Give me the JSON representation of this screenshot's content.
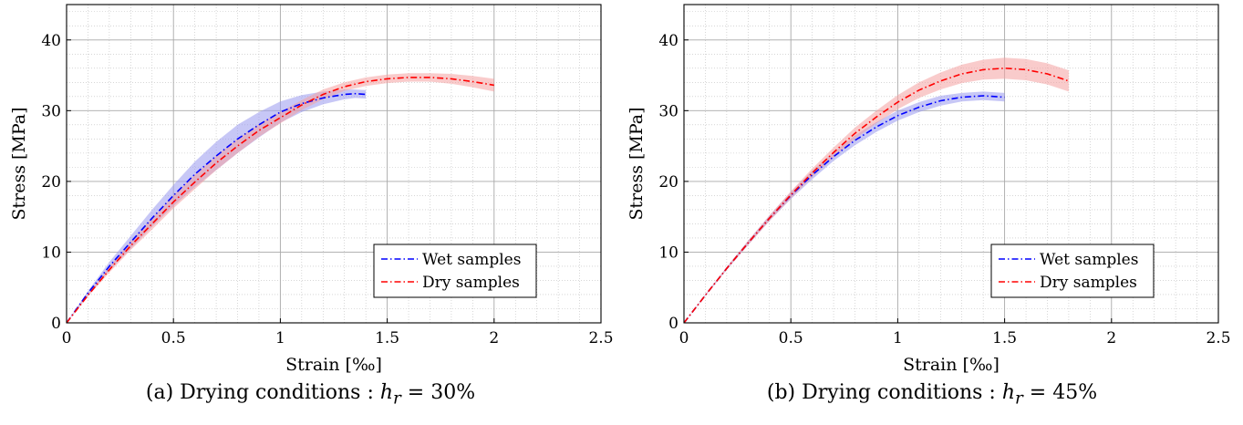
{
  "chart_data": [
    {
      "type": "line",
      "panel": "a",
      "caption_prefix": "(a) Drying conditions : ",
      "caption_var": "h",
      "caption_sub": "r",
      "caption_suffix": " = 30%",
      "xlabel": "Strain [‰]",
      "ylabel": "Stress [MPa]",
      "xlim": [
        0,
        2.5
      ],
      "ylim": [
        0,
        45
      ],
      "xticks": [
        0,
        0.5,
        1,
        1.5,
        2,
        2.5
      ],
      "xtick_labels": [
        "0",
        "0.5",
        "1",
        "1.5",
        "2",
        "2.5"
      ],
      "yticks": [
        0,
        10,
        20,
        30,
        40
      ],
      "ytick_labels": [
        "0",
        "10",
        "20",
        "30",
        "40"
      ],
      "grid": true,
      "minor_grid": true,
      "legend_position": "bottom-right",
      "series": [
        {
          "name": "Wet samples",
          "color": "#0000ff",
          "style": "dash-dot",
          "band_color": "#9999ee",
          "x": [
            0,
            0.1,
            0.2,
            0.3,
            0.4,
            0.5,
            0.6,
            0.7,
            0.8,
            0.9,
            1.0,
            1.1,
            1.2,
            1.3,
            1.35,
            1.4
          ],
          "y": [
            0,
            4.2,
            8.0,
            11.4,
            14.8,
            18.0,
            21.0,
            23.6,
            26.0,
            28.0,
            29.8,
            31.0,
            31.8,
            32.3,
            32.4,
            32.3
          ],
          "band": [
            0,
            0.3,
            0.6,
            0.9,
            1.2,
            1.5,
            1.8,
            2.0,
            2.0,
            1.8,
            1.5,
            1.2,
            0.9,
            0.7,
            0.6,
            0.6
          ]
        },
        {
          "name": "Dry samples",
          "color": "#ff0000",
          "style": "dash-dot",
          "band_color": "#f4a0a0",
          "x": [
            0,
            0.1,
            0.2,
            0.3,
            0.4,
            0.5,
            0.6,
            0.7,
            0.8,
            0.9,
            1.0,
            1.1,
            1.2,
            1.3,
            1.4,
            1.5,
            1.6,
            1.7,
            1.8,
            1.9,
            2.0
          ],
          "y": [
            0,
            3.9,
            7.5,
            10.9,
            14.0,
            17.1,
            19.9,
            22.6,
            25.0,
            27.2,
            29.0,
            30.8,
            32.3,
            33.4,
            34.1,
            34.5,
            34.7,
            34.7,
            34.5,
            34.1,
            33.6
          ],
          "band": [
            0,
            0.2,
            0.4,
            0.6,
            0.8,
            0.9,
            1.0,
            1.0,
            1.0,
            0.9,
            0.8,
            0.7,
            0.7,
            0.6,
            0.6,
            0.6,
            0.6,
            0.6,
            0.7,
            0.8,
            0.9
          ]
        }
      ]
    },
    {
      "type": "line",
      "panel": "b",
      "caption_prefix": "(b) Drying conditions : ",
      "caption_var": "h",
      "caption_sub": "r",
      "caption_suffix": " = 45%",
      "xlabel": "Strain [‰]",
      "ylabel": "Stress [MPa]",
      "xlim": [
        0,
        2.5
      ],
      "ylim": [
        0,
        45
      ],
      "xticks": [
        0,
        0.5,
        1,
        1.5,
        2,
        2.5
      ],
      "xtick_labels": [
        "0",
        "0.5",
        "1",
        "1.5",
        "2",
        "2.5"
      ],
      "yticks": [
        0,
        10,
        20,
        30,
        40
      ],
      "ytick_labels": [
        "0",
        "10",
        "20",
        "30",
        "40"
      ],
      "grid": true,
      "minor_grid": true,
      "legend_position": "bottom-right",
      "series": [
        {
          "name": "Wet samples",
          "color": "#0000ff",
          "style": "dash-dot",
          "band_color": "#9999ee",
          "x": [
            0,
            0.1,
            0.2,
            0.3,
            0.4,
            0.5,
            0.6,
            0.7,
            0.8,
            0.9,
            1.0,
            1.1,
            1.2,
            1.3,
            1.4,
            1.5
          ],
          "y": [
            0,
            3.9,
            7.7,
            11.3,
            14.8,
            18.0,
            20.9,
            23.5,
            25.8,
            27.7,
            29.3,
            30.5,
            31.4,
            31.9,
            32.1,
            31.9
          ],
          "band": [
            0,
            0.1,
            0.2,
            0.3,
            0.4,
            0.5,
            0.6,
            0.6,
            0.7,
            0.7,
            0.7,
            0.7,
            0.7,
            0.6,
            0.6,
            0.6
          ]
        },
        {
          "name": "Dry samples",
          "color": "#ff0000",
          "style": "dash-dot",
          "band_color": "#f4a0a0",
          "x": [
            0,
            0.1,
            0.2,
            0.3,
            0.4,
            0.5,
            0.6,
            0.7,
            0.8,
            0.9,
            1.0,
            1.1,
            1.2,
            1.3,
            1.4,
            1.5,
            1.6,
            1.7,
            1.8
          ],
          "y": [
            0,
            3.9,
            7.7,
            11.3,
            14.8,
            18.1,
            21.2,
            24.1,
            26.8,
            29.1,
            31.2,
            32.9,
            34.2,
            35.2,
            35.8,
            36.0,
            35.8,
            35.2,
            34.2
          ],
          "band": [
            0,
            0.1,
            0.2,
            0.3,
            0.4,
            0.5,
            0.6,
            0.7,
            0.8,
            0.9,
            1.0,
            1.1,
            1.2,
            1.3,
            1.4,
            1.5,
            1.5,
            1.5,
            1.5
          ]
        }
      ]
    }
  ]
}
